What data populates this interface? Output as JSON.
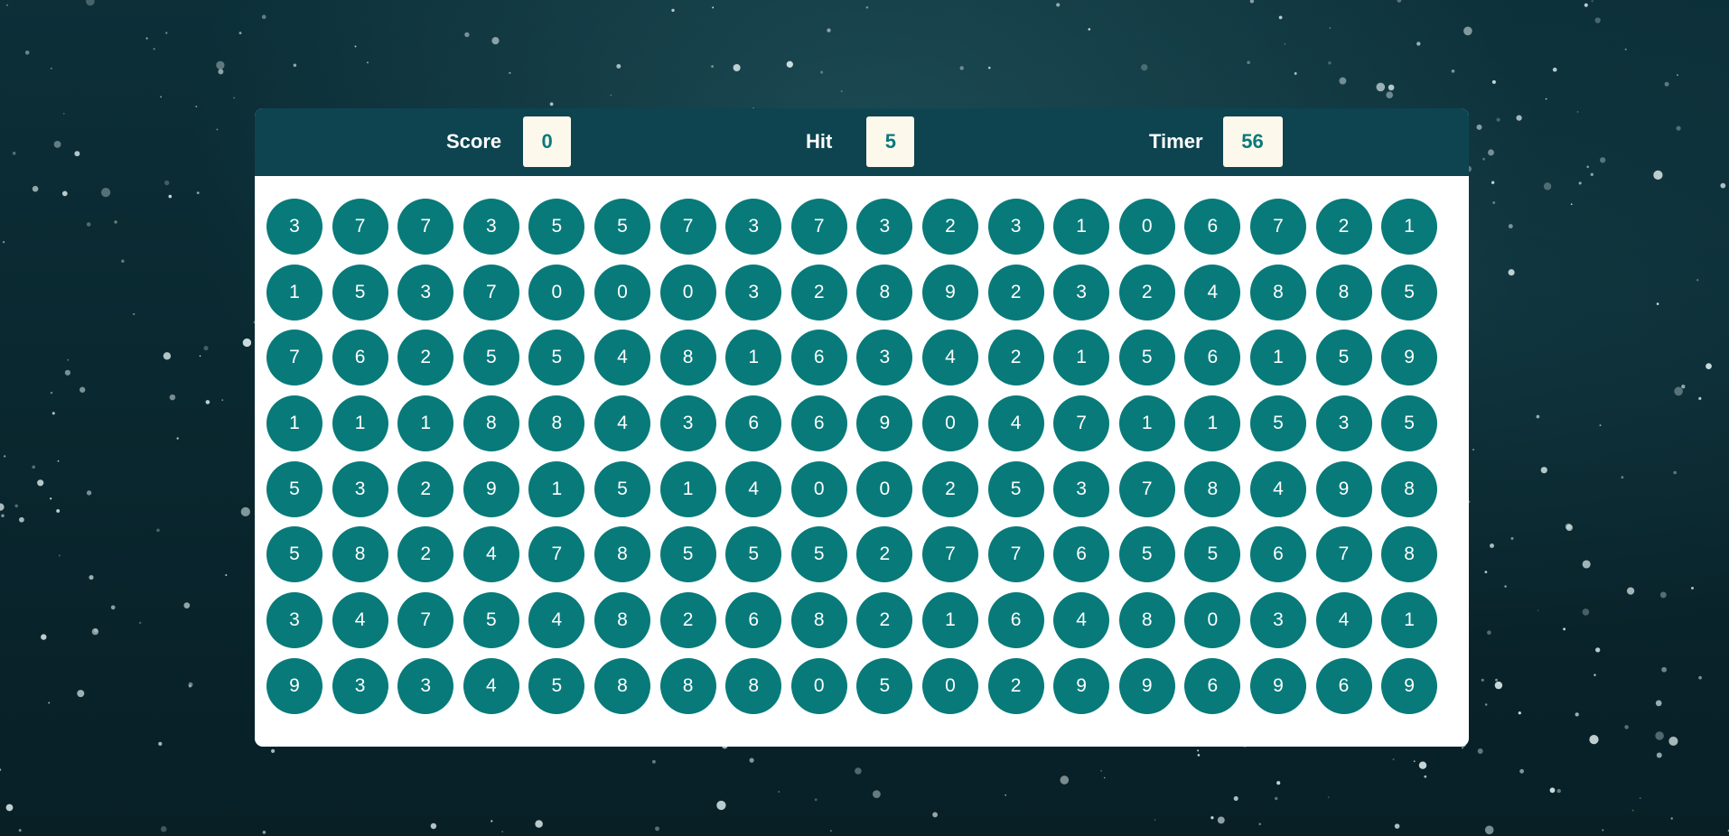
{
  "stats": {
    "score_label": "Score",
    "score_value": "0",
    "hit_label": "Hit",
    "hit_value": "5",
    "timer_label": "Timer",
    "timer_value": "56"
  },
  "colors": {
    "bar_background": "#0d4450",
    "ball": "#087a7a",
    "stat_box": "#fdf8ec",
    "stat_value_text": "#087a7c"
  },
  "board": {
    "rows": [
      [
        "3",
        "7",
        "7",
        "3",
        "5",
        "5",
        "7",
        "3",
        "7",
        "3",
        "2",
        "3",
        "1",
        "0",
        "6",
        "7",
        "2",
        "1"
      ],
      [
        "1",
        "5",
        "3",
        "7",
        "0",
        "0",
        "0",
        "3",
        "2",
        "8",
        "9",
        "2",
        "3",
        "2",
        "4",
        "8",
        "8",
        "5"
      ],
      [
        "7",
        "6",
        "2",
        "5",
        "5",
        "4",
        "8",
        "1",
        "6",
        "3",
        "4",
        "2",
        "1",
        "5",
        "6",
        "1",
        "5",
        "9"
      ],
      [
        "1",
        "1",
        "1",
        "8",
        "8",
        "4",
        "3",
        "6",
        "6",
        "9",
        "0",
        "4",
        "7",
        "1",
        "1",
        "5",
        "3",
        "5"
      ],
      [
        "5",
        "3",
        "2",
        "9",
        "1",
        "5",
        "1",
        "4",
        "0",
        "0",
        "2",
        "5",
        "3",
        "7",
        "8",
        "4",
        "9",
        "8"
      ],
      [
        "5",
        "8",
        "2",
        "4",
        "7",
        "8",
        "5",
        "5",
        "5",
        "2",
        "7",
        "7",
        "6",
        "5",
        "5",
        "6",
        "7",
        "8"
      ],
      [
        "3",
        "4",
        "7",
        "5",
        "4",
        "8",
        "2",
        "6",
        "8",
        "2",
        "1",
        "6",
        "4",
        "8",
        "0",
        "3",
        "4",
        "1"
      ],
      [
        "9",
        "3",
        "3",
        "4",
        "5",
        "8",
        "8",
        "8",
        "0",
        "5",
        "0",
        "2",
        "9",
        "9",
        "6",
        "9",
        "6",
        "9"
      ]
    ]
  }
}
